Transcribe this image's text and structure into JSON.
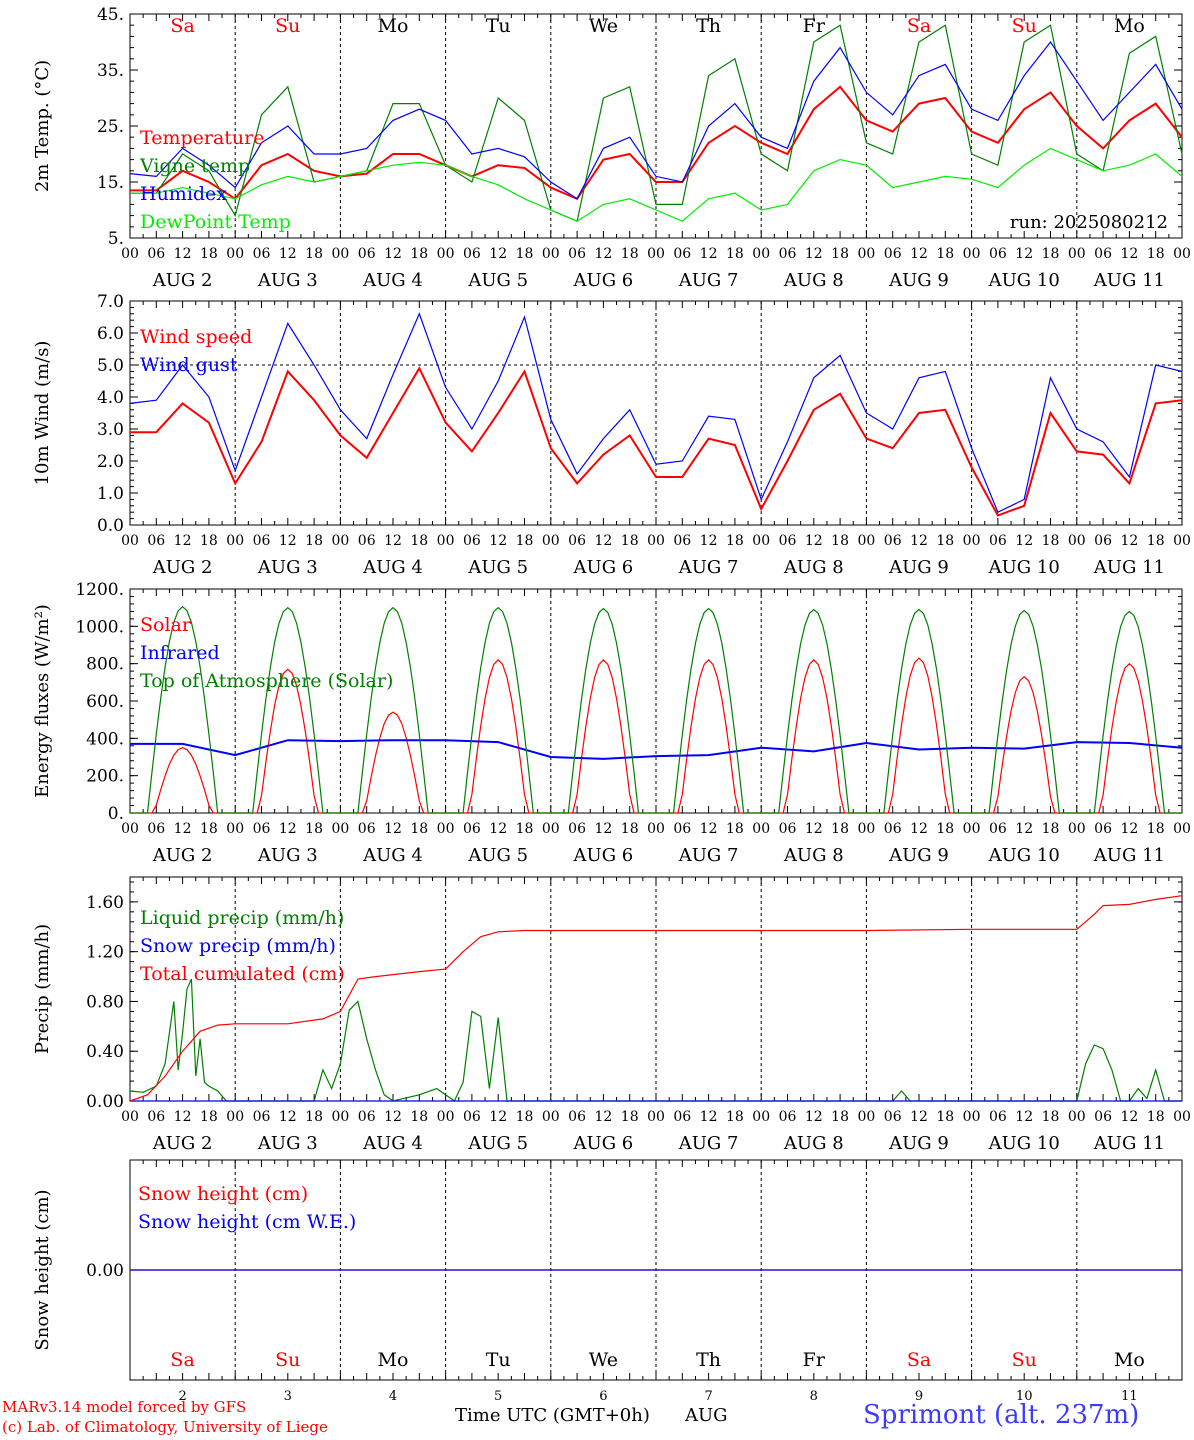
{
  "colors": {
    "red": "#ff0000",
    "green": "#008000",
    "blue": "#0000ff",
    "lightgreen": "#00ee00",
    "black": "#000000"
  },
  "days": [
    {
      "abbr": "Sa",
      "date": "2",
      "weekend": true
    },
    {
      "abbr": "Su",
      "date": "3",
      "weekend": true
    },
    {
      "abbr": "Mo",
      "date": "4",
      "weekend": false
    },
    {
      "abbr": "Tu",
      "date": "5",
      "weekend": false
    },
    {
      "abbr": "We",
      "date": "6",
      "weekend": false
    },
    {
      "abbr": "Th",
      "date": "7",
      "weekend": false
    },
    {
      "abbr": "Fr",
      "date": "8",
      "weekend": false
    },
    {
      "abbr": "Sa",
      "date": "9",
      "weekend": true
    },
    {
      "abbr": "Su",
      "date": "10",
      "weekend": true
    },
    {
      "abbr": "Mo",
      "date": "11",
      "weekend": false
    }
  ],
  "month": "AUG",
  "hour_ticks": [
    "00",
    "06",
    "12",
    "18"
  ],
  "hour_end": "00",
  "run_label": "run: 2025080212",
  "xaxis_title": "Time UTC (GMT+0h)",
  "xaxis_month": "AUG",
  "footer": {
    "credit1": "MARv3.14 model forced by GFS",
    "credit2": "(c) Lab. of Climatology, University of Liege",
    "station": "Sprimont (alt. 237m)"
  },
  "chart_data": [
    {
      "type": "line",
      "ylabel": "2m Temp. (°C)",
      "yticks": [
        "5.",
        "15.",
        "25.",
        "35.",
        "45."
      ],
      "ylim": [
        5,
        45
      ],
      "x_unit": "hours since Aug 2 00 UTC",
      "series": [
        {
          "name": "Temperature",
          "color": "#ff0000",
          "x": [
            0,
            6,
            12,
            18,
            24,
            30,
            36,
            42,
            48,
            54,
            60,
            66,
            72,
            78,
            84,
            90,
            96,
            102,
            108,
            114,
            120,
            126,
            132,
            138,
            144,
            150,
            156,
            162,
            168,
            174,
            180,
            186,
            192,
            198,
            204,
            210,
            216,
            222,
            228,
            234,
            240
          ],
          "y": [
            13.5,
            13.5,
            17,
            15,
            12,
            18,
            20,
            17,
            16,
            16.5,
            20,
            20,
            18,
            16,
            18,
            17.5,
            14,
            12,
            19,
            20,
            15,
            15,
            22,
            25,
            22,
            20,
            28,
            32,
            26,
            24,
            29,
            30,
            24,
            22,
            28,
            31,
            25,
            21,
            26,
            29,
            23
          ]
        },
        {
          "name": "Vigne temp",
          "color": "#008000",
          "x": [
            0,
            6,
            12,
            18,
            24,
            30,
            36,
            42,
            48,
            54,
            60,
            66,
            72,
            78,
            84,
            90,
            96,
            102,
            108,
            114,
            120,
            126,
            132,
            138,
            144,
            150,
            156,
            162,
            168,
            174,
            180,
            186,
            192,
            198,
            204,
            210,
            216,
            222,
            228,
            234,
            240
          ],
          "y": [
            13,
            13,
            20,
            17,
            9,
            27,
            32,
            15,
            16,
            17,
            29,
            29,
            18,
            15,
            30,
            26,
            10,
            8,
            30,
            32,
            11,
            11,
            34,
            37,
            20,
            17,
            40,
            43,
            22,
            20,
            40,
            43,
            20,
            18,
            40,
            43,
            20,
            17,
            38,
            41,
            20
          ]
        },
        {
          "name": "Humidex",
          "color": "#0000ff",
          "x": [
            0,
            6,
            12,
            18,
            24,
            30,
            36,
            42,
            48,
            54,
            60,
            66,
            72,
            78,
            84,
            90,
            96,
            102,
            108,
            114,
            120,
            126,
            132,
            138,
            144,
            150,
            156,
            162,
            168,
            174,
            180,
            186,
            192,
            198,
            204,
            210,
            216,
            222,
            228,
            234,
            240
          ],
          "y": [
            16.5,
            16,
            21,
            18,
            14,
            22,
            25,
            20,
            20,
            21,
            26,
            28,
            26,
            20,
            21,
            19.5,
            15,
            12,
            21,
            23,
            16,
            15,
            25,
            29,
            23,
            21,
            33,
            39,
            31,
            27,
            34,
            36,
            28,
            26,
            34,
            40,
            33,
            26,
            31,
            36,
            28
          ]
        },
        {
          "name": "DewPoint Temp",
          "color": "#00ee00",
          "x": [
            0,
            6,
            12,
            18,
            24,
            30,
            36,
            42,
            48,
            54,
            60,
            66,
            72,
            78,
            84,
            90,
            96,
            102,
            108,
            114,
            120,
            126,
            132,
            138,
            144,
            150,
            156,
            162,
            168,
            174,
            180,
            186,
            192,
            198,
            204,
            210,
            216,
            222,
            228,
            234,
            240
          ],
          "y": [
            13,
            13,
            14,
            13,
            12,
            14.5,
            16,
            15,
            16,
            17,
            18,
            18.5,
            18,
            16,
            14.5,
            12,
            10,
            8,
            11,
            12,
            10,
            8,
            12,
            13,
            10,
            11,
            17,
            19,
            18,
            14,
            15,
            16,
            15.5,
            14,
            18,
            21,
            19,
            17,
            18,
            20,
            16
          ]
        }
      ]
    },
    {
      "type": "line",
      "ylabel": "10m Wind (m/s)",
      "yticks": [
        "0.0",
        "1.0",
        "2.0",
        "3.0",
        "4.0",
        "5.0",
        "6.0",
        "7.0"
      ],
      "ylim": [
        0,
        7
      ],
      "x_unit": "hours since Aug 2 00 UTC",
      "series": [
        {
          "name": "Wind speed",
          "color": "#ff0000",
          "x": [
            0,
            6,
            12,
            18,
            24,
            30,
            36,
            42,
            48,
            54,
            60,
            66,
            72,
            78,
            84,
            90,
            96,
            102,
            108,
            114,
            120,
            126,
            132,
            138,
            144,
            150,
            156,
            162,
            168,
            174,
            180,
            186,
            192,
            198,
            204,
            210,
            216,
            222,
            228,
            234,
            240
          ],
          "y": [
            2.9,
            2.9,
            3.8,
            3.2,
            1.3,
            2.6,
            4.8,
            3.9,
            2.8,
            2.1,
            3.5,
            4.9,
            3.2,
            2.3,
            3.5,
            4.8,
            2.4,
            1.3,
            2.2,
            2.8,
            1.5,
            1.5,
            2.7,
            2.5,
            0.5,
            2.0,
            3.6,
            4.1,
            2.7,
            2.4,
            3.5,
            3.6,
            1.8,
            0.3,
            0.6,
            3.5,
            2.3,
            2.2,
            1.3,
            3.8,
            3.9
          ]
        },
        {
          "name": "Wind gust",
          "color": "#0000ff",
          "x": [
            0,
            6,
            12,
            18,
            24,
            30,
            36,
            42,
            48,
            54,
            60,
            66,
            72,
            78,
            84,
            90,
            96,
            102,
            108,
            114,
            120,
            126,
            132,
            138,
            144,
            150,
            156,
            162,
            168,
            174,
            180,
            186,
            192,
            198,
            204,
            210,
            216,
            222,
            228,
            234,
            240
          ],
          "y": [
            3.8,
            3.9,
            5.0,
            4.0,
            1.7,
            4.0,
            6.3,
            5.0,
            3.6,
            2.7,
            4.7,
            6.6,
            4.3,
            3.0,
            4.5,
            6.5,
            3.3,
            1.6,
            2.7,
            3.6,
            1.9,
            2.0,
            3.4,
            3.3,
            0.8,
            2.6,
            4.6,
            5.3,
            3.5,
            3.0,
            4.6,
            4.8,
            2.4,
            0.4,
            0.8,
            4.6,
            3.0,
            2.6,
            1.5,
            5.0,
            4.8
          ]
        }
      ],
      "ref_line": 5.0
    },
    {
      "type": "line",
      "ylabel": "Energy fluxes (W/m²)",
      "yticks": [
        "0.",
        "200.",
        "400.",
        "600.",
        "800.",
        "1000.",
        "1200."
      ],
      "ylim": [
        0,
        1200
      ],
      "x_unit": "hours since Aug 2 00 UTC",
      "series": [
        {
          "name": "Solar",
          "color": "#ff0000",
          "daily_peak": [
            350,
            770,
            540,
            820,
            820,
            820,
            820,
            830,
            730,
            800
          ]
        },
        {
          "name": "Infrared",
          "color": "#0000ff",
          "x": [
            0,
            12,
            24,
            36,
            48,
            60,
            72,
            84,
            96,
            108,
            120,
            132,
            144,
            156,
            168,
            180,
            192,
            204,
            216,
            228,
            240
          ],
          "y": [
            370,
            370,
            310,
            390,
            385,
            390,
            390,
            380,
            300,
            290,
            305,
            310,
            350,
            330,
            375,
            340,
            350,
            345,
            380,
            375,
            350
          ]
        },
        {
          "name": "Top of Atmosphere (Solar)",
          "color": "#008000",
          "daily_peak": [
            1105,
            1100,
            1100,
            1100,
            1095,
            1095,
            1090,
            1090,
            1085,
            1080
          ]
        }
      ]
    },
    {
      "type": "line",
      "ylabel": "Precip (mm/h)",
      "yticks": [
        "0.00",
        "0.40",
        "0.80",
        "1.20",
        "1.60"
      ],
      "ylim": [
        0,
        1.8
      ],
      "x_unit": "hours since Aug 2 00 UTC",
      "series": [
        {
          "name": "Liquid precip (mm/h)",
          "color": "#008000",
          "x": [
            0,
            3,
            6,
            8,
            10,
            11,
            12,
            13,
            14,
            15,
            16,
            17,
            18,
            20,
            22,
            24,
            42,
            44,
            46,
            48,
            50,
            52,
            54,
            56,
            58,
            60,
            66,
            70,
            74,
            76,
            78,
            80,
            82,
            84,
            86,
            90,
            174,
            176,
            178,
            216,
            218,
            220,
            222,
            224,
            226,
            228,
            230,
            232,
            234,
            236,
            238,
            240
          ],
          "y": [
            0.08,
            0.07,
            0.12,
            0.3,
            0.8,
            0.25,
            0.55,
            0.9,
            0.98,
            0.2,
            0.5,
            0.15,
            0.12,
            0.08,
            0.0,
            0.0,
            0.0,
            0.25,
            0.1,
            0.3,
            0.73,
            0.8,
            0.5,
            0.25,
            0.05,
            0.0,
            0.05,
            0.1,
            0.0,
            0.15,
            0.72,
            0.68,
            0.1,
            0.67,
            0.0,
            0.0,
            0.0,
            0.08,
            0.0,
            0.0,
            0.3,
            0.45,
            0.42,
            0.25,
            0.0,
            0.0,
            0.1,
            0.02,
            0.25,
            0.0,
            0.0,
            0.0
          ]
        },
        {
          "name": "Snow precip (mm/h)",
          "color": "#0000ff",
          "x": [
            0,
            240
          ],
          "y": [
            0,
            0
          ]
        },
        {
          "name": "Total cumulated (cm)",
          "color": "#ff0000",
          "x": [
            0,
            4,
            8,
            12,
            16,
            20,
            24,
            36,
            44,
            48,
            52,
            56,
            66,
            72,
            76,
            80,
            84,
            90,
            120,
            168,
            192,
            216,
            220,
            222,
            228,
            234,
            240
          ],
          "y": [
            0.0,
            0.05,
            0.2,
            0.4,
            0.56,
            0.61,
            0.62,
            0.62,
            0.66,
            0.72,
            0.98,
            1.0,
            1.04,
            1.06,
            1.2,
            1.32,
            1.36,
            1.37,
            1.37,
            1.37,
            1.38,
            1.38,
            1.5,
            1.57,
            1.58,
            1.62,
            1.65
          ]
        }
      ]
    },
    {
      "type": "line",
      "ylabel": "Snow height (cm)",
      "yticks": [
        "0.00"
      ],
      "ylim": [
        -1,
        1
      ],
      "x_unit": "hours since Aug 2 00 UTC",
      "series": [
        {
          "name": "Snow height (cm)",
          "color": "#ff0000",
          "x": [
            0,
            240
          ],
          "y": [
            0,
            0
          ]
        },
        {
          "name": "Snow height (cm W.E.)",
          "color": "#0000ff",
          "x": [
            0,
            240
          ],
          "y": [
            0,
            0
          ]
        }
      ]
    }
  ]
}
